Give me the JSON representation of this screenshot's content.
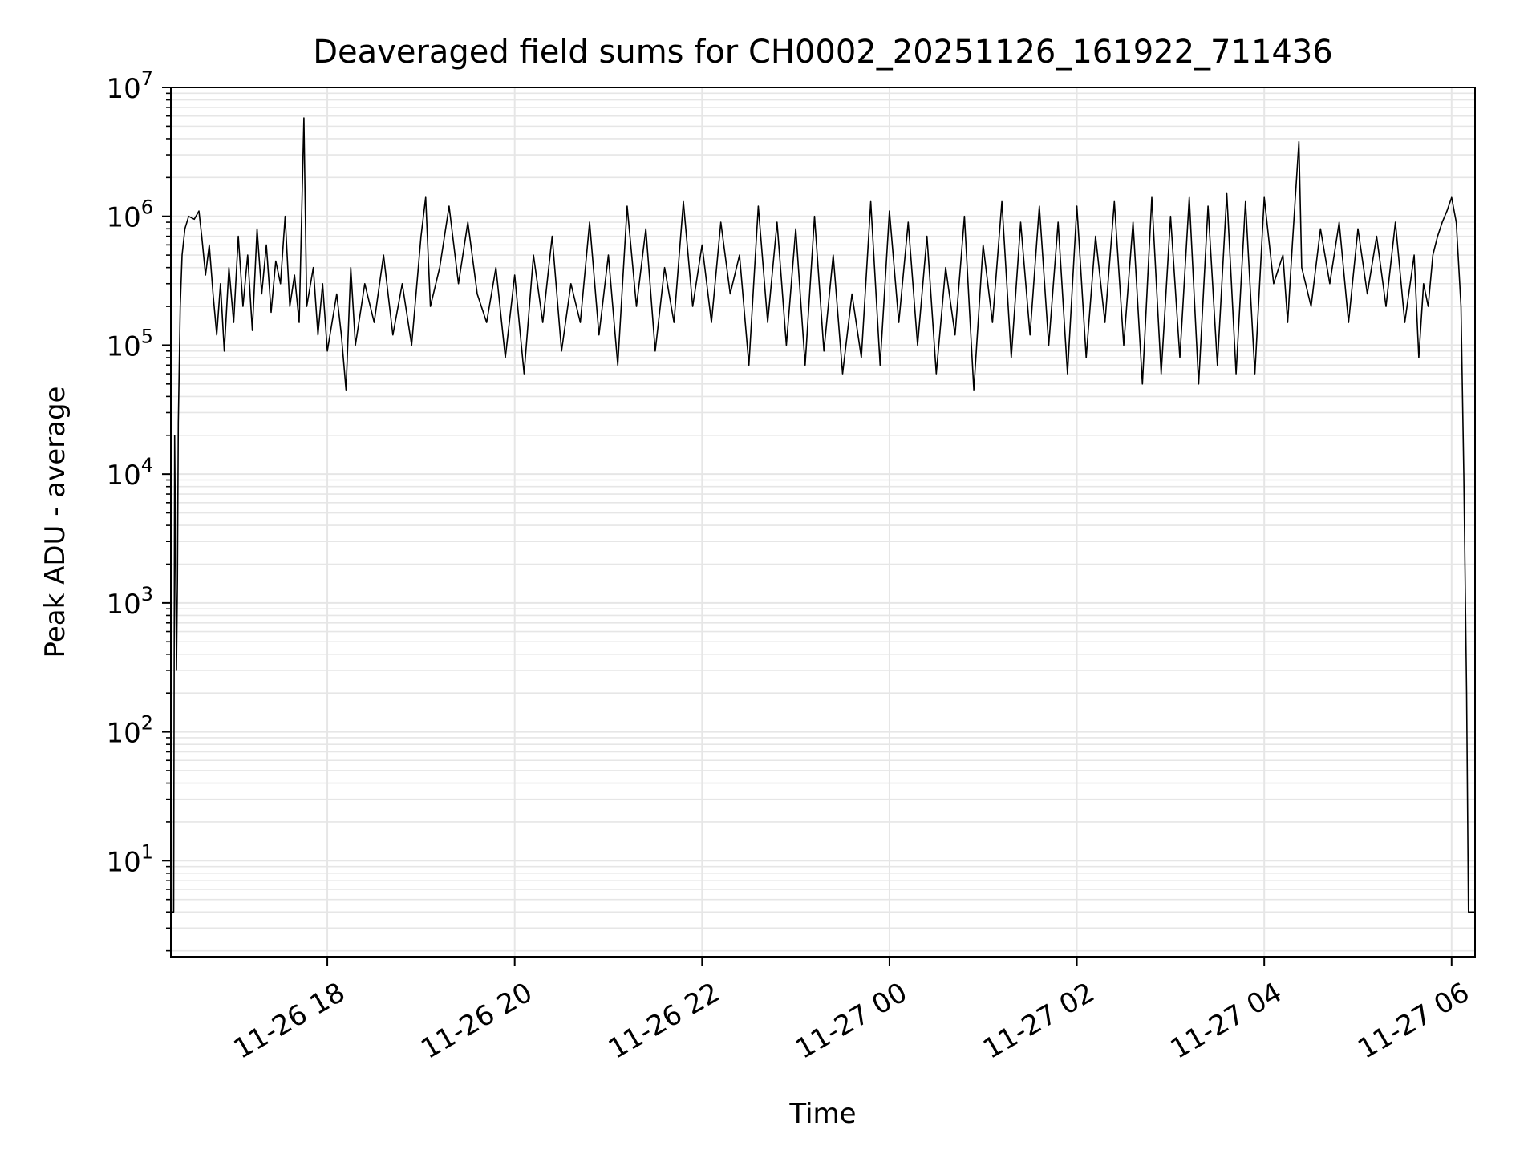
{
  "chart_data": {
    "type": "line",
    "title": "Deaveraged field sums for CH0002_20251126_161922_711436",
    "xlabel": "Time",
    "ylabel": "Peak ADU - average",
    "yscale": "log",
    "ylim": [
      1.8,
      10000000
    ],
    "xlim_hours": [
      16.33,
      30.25
    ],
    "grid": true,
    "colors": {
      "line": "#000000",
      "grid": "#e6e6e6",
      "axes": "#000000"
    },
    "y_ticks": [
      {
        "value": 10,
        "base": "10",
        "exp": "1"
      },
      {
        "value": 100,
        "base": "10",
        "exp": "2"
      },
      {
        "value": 1000,
        "base": "10",
        "exp": "3"
      },
      {
        "value": 10000,
        "base": "10",
        "exp": "4"
      },
      {
        "value": 100000,
        "base": "10",
        "exp": "5"
      },
      {
        "value": 1000000,
        "base": "10",
        "exp": "6"
      },
      {
        "value": 10000000,
        "base": "10",
        "exp": "7"
      }
    ],
    "x_ticks": [
      {
        "hour": 18,
        "label": "11-26 18"
      },
      {
        "hour": 20,
        "label": "11-26 20"
      },
      {
        "hour": 22,
        "label": "11-26 22"
      },
      {
        "hour": 24,
        "label": "11-27 00"
      },
      {
        "hour": 26,
        "label": "11-27 02"
      },
      {
        "hour": 28,
        "label": "11-27 04"
      },
      {
        "hour": 30,
        "label": "11-27 06"
      }
    ],
    "series": [
      {
        "name": "deaveraged field sum",
        "points": [
          [
            16.33,
            4
          ],
          [
            16.36,
            4
          ],
          [
            16.37,
            20000
          ],
          [
            16.39,
            300
          ],
          [
            16.4,
            1500
          ],
          [
            16.41,
            25000
          ],
          [
            16.43,
            200000
          ],
          [
            16.45,
            500000
          ],
          [
            16.48,
            800000
          ],
          [
            16.52,
            1000000
          ],
          [
            16.58,
            950000
          ],
          [
            16.63,
            1100000
          ],
          [
            16.66,
            700000
          ],
          [
            16.7,
            350000
          ],
          [
            16.74,
            600000
          ],
          [
            16.78,
            250000
          ],
          [
            16.82,
            120000
          ],
          [
            16.86,
            300000
          ],
          [
            16.9,
            90000
          ],
          [
            16.95,
            400000
          ],
          [
            17.0,
            150000
          ],
          [
            17.05,
            700000
          ],
          [
            17.1,
            200000
          ],
          [
            17.15,
            500000
          ],
          [
            17.2,
            130000
          ],
          [
            17.25,
            800000
          ],
          [
            17.3,
            250000
          ],
          [
            17.35,
            600000
          ],
          [
            17.4,
            180000
          ],
          [
            17.45,
            450000
          ],
          [
            17.5,
            300000
          ],
          [
            17.55,
            1000000
          ],
          [
            17.6,
            200000
          ],
          [
            17.65,
            350000
          ],
          [
            17.7,
            150000
          ],
          [
            17.75,
            5800000
          ],
          [
            17.78,
            200000
          ],
          [
            17.85,
            400000
          ],
          [
            17.9,
            120000
          ],
          [
            17.95,
            300000
          ],
          [
            18.0,
            90000
          ],
          [
            18.1,
            250000
          ],
          [
            18.15,
            120000
          ],
          [
            18.2,
            45000
          ],
          [
            18.25,
            400000
          ],
          [
            18.3,
            100000
          ],
          [
            18.4,
            300000
          ],
          [
            18.5,
            150000
          ],
          [
            18.6,
            500000
          ],
          [
            18.7,
            120000
          ],
          [
            18.8,
            300000
          ],
          [
            18.9,
            100000
          ],
          [
            19.0,
            700000
          ],
          [
            19.05,
            1400000
          ],
          [
            19.1,
            200000
          ],
          [
            19.2,
            400000
          ],
          [
            19.3,
            1200000
          ],
          [
            19.4,
            300000
          ],
          [
            19.5,
            900000
          ],
          [
            19.6,
            250000
          ],
          [
            19.7,
            150000
          ],
          [
            19.8,
            400000
          ],
          [
            19.9,
            80000
          ],
          [
            20.0,
            350000
          ],
          [
            20.1,
            60000
          ],
          [
            20.2,
            500000
          ],
          [
            20.3,
            150000
          ],
          [
            20.4,
            700000
          ],
          [
            20.5,
            90000
          ],
          [
            20.6,
            300000
          ],
          [
            20.7,
            150000
          ],
          [
            20.8,
            900000
          ],
          [
            20.9,
            120000
          ],
          [
            21.0,
            500000
          ],
          [
            21.1,
            70000
          ],
          [
            21.2,
            1200000
          ],
          [
            21.3,
            200000
          ],
          [
            21.4,
            800000
          ],
          [
            21.5,
            90000
          ],
          [
            21.6,
            400000
          ],
          [
            21.7,
            150000
          ],
          [
            21.8,
            1300000
          ],
          [
            21.9,
            200000
          ],
          [
            22.0,
            600000
          ],
          [
            22.1,
            150000
          ],
          [
            22.2,
            900000
          ],
          [
            22.3,
            250000
          ],
          [
            22.4,
            500000
          ],
          [
            22.5,
            70000
          ],
          [
            22.6,
            1200000
          ],
          [
            22.7,
            150000
          ],
          [
            22.8,
            900000
          ],
          [
            22.9,
            100000
          ],
          [
            23.0,
            800000
          ],
          [
            23.1,
            70000
          ],
          [
            23.2,
            1000000
          ],
          [
            23.3,
            90000
          ],
          [
            23.4,
            500000
          ],
          [
            23.5,
            60000
          ],
          [
            23.6,
            250000
          ],
          [
            23.7,
            80000
          ],
          [
            23.8,
            1300000
          ],
          [
            23.9,
            70000
          ],
          [
            24.0,
            1100000
          ],
          [
            24.1,
            150000
          ],
          [
            24.2,
            900000
          ],
          [
            24.3,
            100000
          ],
          [
            24.4,
            700000
          ],
          [
            24.5,
            60000
          ],
          [
            24.6,
            400000
          ],
          [
            24.7,
            120000
          ],
          [
            24.8,
            1000000
          ],
          [
            24.9,
            45000
          ],
          [
            25.0,
            600000
          ],
          [
            25.1,
            150000
          ],
          [
            25.2,
            1300000
          ],
          [
            25.3,
            80000
          ],
          [
            25.4,
            900000
          ],
          [
            25.5,
            120000
          ],
          [
            25.6,
            1200000
          ],
          [
            25.7,
            100000
          ],
          [
            25.8,
            900000
          ],
          [
            25.9,
            60000
          ],
          [
            26.0,
            1200000
          ],
          [
            26.1,
            80000
          ],
          [
            26.2,
            700000
          ],
          [
            26.3,
            150000
          ],
          [
            26.4,
            1300000
          ],
          [
            26.5,
            100000
          ],
          [
            26.6,
            900000
          ],
          [
            26.7,
            50000
          ],
          [
            26.8,
            1400000
          ],
          [
            26.9,
            60000
          ],
          [
            27.0,
            1000000
          ],
          [
            27.1,
            80000
          ],
          [
            27.2,
            1400000
          ],
          [
            27.3,
            50000
          ],
          [
            27.4,
            1200000
          ],
          [
            27.5,
            70000
          ],
          [
            27.6,
            1500000
          ],
          [
            27.7,
            60000
          ],
          [
            27.8,
            1300000
          ],
          [
            27.9,
            60000
          ],
          [
            28.0,
            1400000
          ],
          [
            28.1,
            300000
          ],
          [
            28.2,
            500000
          ],
          [
            28.25,
            150000
          ],
          [
            28.3,
            600000
          ],
          [
            28.37,
            3800000
          ],
          [
            28.4,
            400000
          ],
          [
            28.5,
            200000
          ],
          [
            28.6,
            800000
          ],
          [
            28.7,
            300000
          ],
          [
            28.8,
            900000
          ],
          [
            28.9,
            150000
          ],
          [
            29.0,
            800000
          ],
          [
            29.1,
            250000
          ],
          [
            29.2,
            700000
          ],
          [
            29.3,
            200000
          ],
          [
            29.4,
            900000
          ],
          [
            29.5,
            150000
          ],
          [
            29.6,
            500000
          ],
          [
            29.65,
            80000
          ],
          [
            29.7,
            300000
          ],
          [
            29.75,
            200000
          ],
          [
            29.8,
            500000
          ],
          [
            29.85,
            700000
          ],
          [
            29.9,
            900000
          ],
          [
            29.95,
            1100000
          ],
          [
            30.0,
            1400000
          ],
          [
            30.05,
            900000
          ],
          [
            30.1,
            200000
          ],
          [
            30.13,
            10000
          ],
          [
            30.16,
            200
          ],
          [
            30.18,
            4
          ],
          [
            30.25,
            4
          ]
        ]
      }
    ]
  }
}
